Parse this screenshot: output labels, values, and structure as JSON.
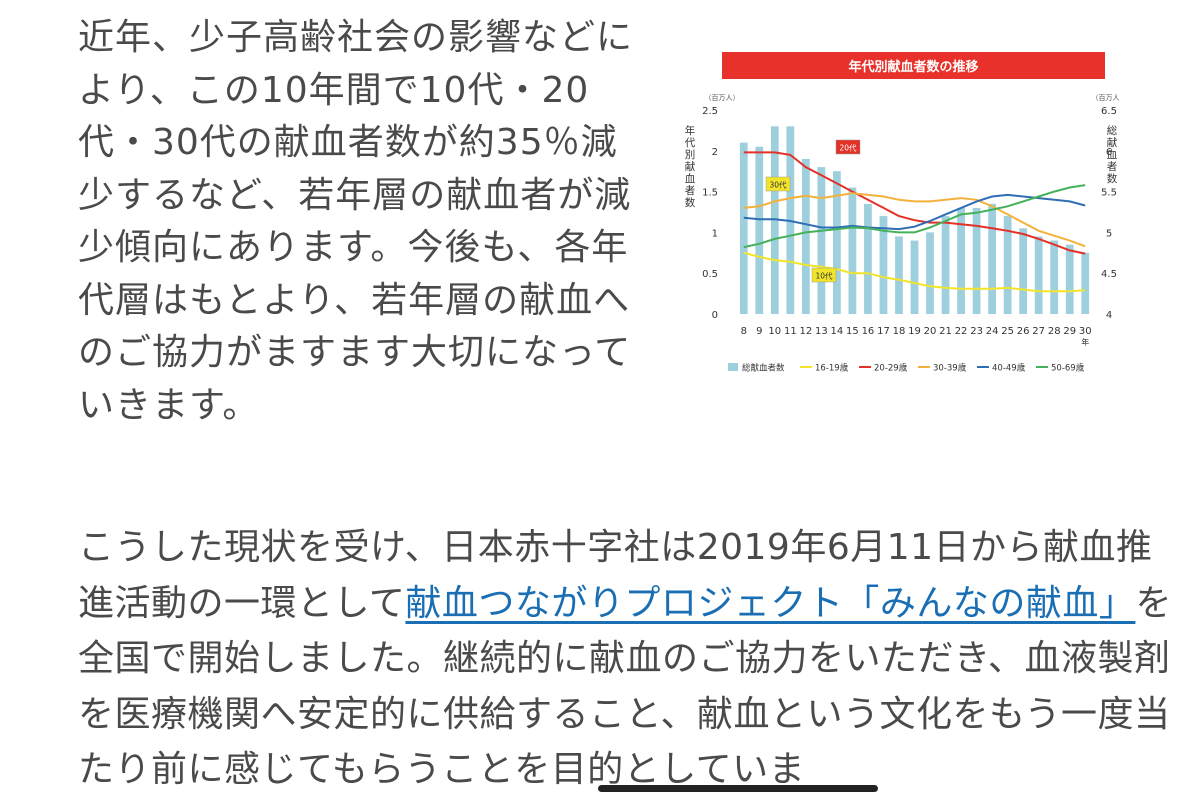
{
  "article": {
    "paragraph1": "近年、少子高齢社会の影響などにより、この10年間で10代・20代・30代の献血者数が約35％減少するなど、若年層の献血者が減少傾向にあります。今後も、各年代層はもとより、若年層の献血へのご協力がますます大切になっていきます。",
    "paragraph2_before": "こうした現状を受け、日本赤十字社は2019年6月11日から献血推進活動の一環として",
    "paragraph2_link": "献血つながりプロジェクト「みんなの献血」",
    "paragraph2_after": "を全国で開始しました。継続的に献血のご協力をいただき、血液製剤を医療機関へ安定的に供給すること、献血という文化をもう一度当たり前に感じてもらうことを目的としていま"
  },
  "chart_data": {
    "type": "bar",
    "title": "年代別献血者数の推移",
    "categories": [
      "8",
      "9",
      "10",
      "11",
      "12",
      "13",
      "14",
      "15",
      "16",
      "17",
      "18",
      "19",
      "20",
      "21",
      "22",
      "23",
      "24",
      "25",
      "26",
      "27",
      "28",
      "29",
      "30"
    ],
    "x_suffix": "年",
    "ylabel_left": "年代別献血者数",
    "ylabel_right": "総献血者数",
    "unit_left": "（百万人）",
    "unit_right": "（百万人）",
    "ylim_left": [
      0,
      2.5
    ],
    "ylim_right": [
      4,
      6.5
    ],
    "left_ticks": [
      "0",
      "0.5",
      "1",
      "1.5",
      "2",
      "2.5"
    ],
    "right_ticks": [
      "4",
      "4.5",
      "5",
      "5.5",
      "6",
      "6.5"
    ],
    "bars": {
      "name": "総献血者数",
      "color": "#9ecfdd",
      "values": [
        6.1,
        6.05,
        6.3,
        6.3,
        5.9,
        5.8,
        5.75,
        5.55,
        5.35,
        5.2,
        4.95,
        4.9,
        5.0,
        5.2,
        5.3,
        5.3,
        5.35,
        5.2,
        5.05,
        4.95,
        4.9,
        4.85,
        4.75
      ]
    },
    "series": [
      {
        "name": "16-19歳",
        "color": "#f2e42a",
        "values": [
          0.75,
          0.7,
          0.66,
          0.64,
          0.6,
          0.58,
          0.55,
          0.5,
          0.5,
          0.45,
          0.42,
          0.38,
          0.34,
          0.32,
          0.31,
          0.31,
          0.31,
          0.32,
          0.3,
          0.28,
          0.28,
          0.28,
          0.29
        ]
      },
      {
        "name": "20-29歳",
        "color": "#e33128",
        "values": [
          1.98,
          1.98,
          1.98,
          1.95,
          1.8,
          1.7,
          1.6,
          1.5,
          1.4,
          1.3,
          1.2,
          1.15,
          1.12,
          1.12,
          1.1,
          1.08,
          1.05,
          1.02,
          0.98,
          0.92,
          0.85,
          0.78,
          0.74
        ]
      },
      {
        "name": "30-39歳",
        "color": "#f5b13d",
        "values": [
          1.3,
          1.32,
          1.38,
          1.42,
          1.45,
          1.42,
          1.45,
          1.48,
          1.46,
          1.44,
          1.4,
          1.38,
          1.38,
          1.4,
          1.42,
          1.4,
          1.32,
          1.22,
          1.12,
          1.02,
          0.96,
          0.9,
          0.83
        ]
      },
      {
        "name": "40-49歳",
        "color": "#2f6db5",
        "values": [
          1.18,
          1.16,
          1.16,
          1.14,
          1.1,
          1.06,
          1.06,
          1.08,
          1.06,
          1.05,
          1.04,
          1.07,
          1.14,
          1.22,
          1.3,
          1.38,
          1.44,
          1.46,
          1.44,
          1.42,
          1.4,
          1.38,
          1.33
        ]
      },
      {
        "name": "50-69歳",
        "color": "#45b15a",
        "values": [
          0.82,
          0.86,
          0.92,
          0.96,
          1.0,
          1.02,
          1.04,
          1.06,
          1.05,
          1.02,
          1.0,
          1.0,
          1.06,
          1.14,
          1.22,
          1.24,
          1.28,
          1.32,
          1.38,
          1.44,
          1.5,
          1.55,
          1.58
        ]
      }
    ],
    "annotations": [
      {
        "text": "20代",
        "bg": "#e33128",
        "fg": "#ffffff",
        "series": "20-29歳"
      },
      {
        "text": "30代",
        "bg": "#f2e42a",
        "fg": "#333333",
        "series": "30-39歳"
      },
      {
        "text": "10代",
        "bg": "#f2e42a",
        "fg": "#333333",
        "series": "16-19歳"
      }
    ],
    "legend_position": "bottom",
    "grid": false
  }
}
